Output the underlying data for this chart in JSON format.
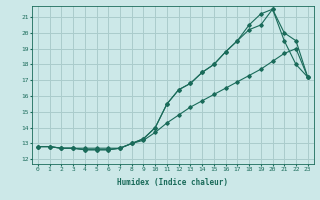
{
  "title": "",
  "xlabel": "Humidex (Indice chaleur)",
  "bg_color": "#cce8e8",
  "grid_color": "#aacccc",
  "line_color": "#1a6b5a",
  "xlim": [
    -0.5,
    23.5
  ],
  "ylim": [
    11.7,
    21.7
  ],
  "xticks": [
    0,
    1,
    2,
    3,
    4,
    5,
    6,
    7,
    8,
    9,
    10,
    11,
    12,
    13,
    14,
    15,
    16,
    17,
    18,
    19,
    20,
    21,
    22,
    23
  ],
  "yticks": [
    12,
    13,
    14,
    15,
    16,
    17,
    18,
    19,
    20,
    21
  ],
  "line1_x": [
    0,
    1,
    2,
    3,
    4,
    5,
    6,
    7,
    8,
    9,
    10,
    11,
    12,
    13,
    14,
    15,
    16,
    17,
    18,
    19,
    20,
    21,
    22,
    23
  ],
  "line1_y": [
    12.8,
    12.8,
    12.7,
    12.7,
    12.6,
    12.6,
    12.6,
    12.7,
    13.0,
    13.3,
    14.0,
    15.5,
    16.4,
    16.8,
    17.5,
    18.0,
    18.8,
    19.5,
    20.2,
    20.5,
    21.5,
    20.0,
    19.5,
    17.2
  ],
  "line2_x": [
    0,
    1,
    2,
    3,
    4,
    5,
    6,
    7,
    8,
    9,
    10,
    11,
    12,
    13,
    14,
    15,
    16,
    17,
    18,
    19,
    20,
    21,
    22,
    23
  ],
  "line2_y": [
    12.8,
    12.8,
    12.7,
    12.7,
    12.6,
    12.6,
    12.6,
    12.7,
    13.0,
    13.3,
    14.0,
    15.5,
    16.4,
    16.8,
    17.5,
    18.0,
    18.8,
    19.5,
    20.5,
    21.2,
    21.5,
    19.5,
    18.0,
    17.2
  ],
  "line3_x": [
    0,
    1,
    2,
    3,
    4,
    5,
    6,
    7,
    8,
    9,
    10,
    11,
    12,
    13,
    14,
    15,
    16,
    17,
    18,
    19,
    20,
    21,
    22,
    23
  ],
  "line3_y": [
    12.8,
    12.8,
    12.7,
    12.7,
    12.7,
    12.7,
    12.7,
    12.7,
    13.0,
    13.2,
    13.7,
    14.3,
    14.8,
    15.3,
    15.7,
    16.1,
    16.5,
    16.9,
    17.3,
    17.7,
    18.2,
    18.7,
    19.0,
    17.2
  ]
}
